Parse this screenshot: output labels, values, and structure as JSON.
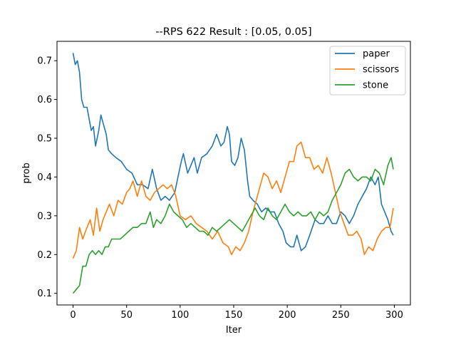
{
  "chart_data": {
    "type": "line",
    "title": "--RPS 622 Result : [0.05, 0.05]",
    "xlabel": "Iter",
    "ylabel": "prob",
    "xlim": [
      -15,
      315
    ],
    "ylim": [
      0.07,
      0.75
    ],
    "xticks": [
      0,
      50,
      100,
      150,
      200,
      250,
      300
    ],
    "yticks": [
      0.1,
      0.2,
      0.3,
      0.4,
      0.5,
      0.6,
      0.7
    ],
    "grid": false,
    "legend_position": "top-right",
    "series": [
      {
        "name": "paper",
        "color": "#1f77b4",
        "points": [
          [
            0,
            0.72
          ],
          [
            2,
            0.69
          ],
          [
            4,
            0.7
          ],
          [
            6,
            0.67
          ],
          [
            8,
            0.6
          ],
          [
            10,
            0.58
          ],
          [
            13,
            0.58
          ],
          [
            15,
            0.55
          ],
          [
            17,
            0.52
          ],
          [
            19,
            0.53
          ],
          [
            21,
            0.48
          ],
          [
            24,
            0.52
          ],
          [
            26,
            0.56
          ],
          [
            28,
            0.54
          ],
          [
            31,
            0.51
          ],
          [
            33,
            0.47
          ],
          [
            36,
            0.46
          ],
          [
            40,
            0.45
          ],
          [
            45,
            0.44
          ],
          [
            50,
            0.42
          ],
          [
            55,
            0.41
          ],
          [
            60,
            0.38
          ],
          [
            65,
            0.38
          ],
          [
            70,
            0.37
          ],
          [
            74,
            0.42
          ],
          [
            78,
            0.37
          ],
          [
            82,
            0.34
          ],
          [
            86,
            0.35
          ],
          [
            90,
            0.34
          ],
          [
            95,
            0.36
          ],
          [
            98,
            0.4
          ],
          [
            101,
            0.44
          ],
          [
            103,
            0.46
          ],
          [
            107,
            0.41
          ],
          [
            110,
            0.43
          ],
          [
            113,
            0.45
          ],
          [
            116,
            0.41
          ],
          [
            120,
            0.45
          ],
          [
            125,
            0.46
          ],
          [
            130,
            0.48
          ],
          [
            134,
            0.51
          ],
          [
            138,
            0.48
          ],
          [
            141,
            0.49
          ],
          [
            144,
            0.53
          ],
          [
            146,
            0.51
          ],
          [
            148,
            0.44
          ],
          [
            151,
            0.43
          ],
          [
            154,
            0.45
          ],
          [
            157,
            0.5
          ],
          [
            160,
            0.47
          ],
          [
            163,
            0.39
          ],
          [
            165,
            0.35
          ],
          [
            168,
            0.34
          ],
          [
            172,
            0.33
          ],
          [
            176,
            0.31
          ],
          [
            180,
            0.32
          ],
          [
            184,
            0.31
          ],
          [
            188,
            0.31
          ],
          [
            192,
            0.28
          ],
          [
            196,
            0.26
          ],
          [
            199,
            0.23
          ],
          [
            203,
            0.22
          ],
          [
            206,
            0.22
          ],
          [
            209,
            0.25
          ],
          [
            213,
            0.21
          ],
          [
            217,
            0.22
          ],
          [
            221,
            0.25
          ],
          [
            226,
            0.29
          ],
          [
            230,
            0.28
          ],
          [
            234,
            0.28
          ],
          [
            238,
            0.3
          ],
          [
            242,
            0.28
          ],
          [
            246,
            0.28
          ],
          [
            250,
            0.31
          ],
          [
            254,
            0.3
          ],
          [
            258,
            0.28
          ],
          [
            262,
            0.3
          ],
          [
            266,
            0.33
          ],
          [
            270,
            0.35
          ],
          [
            274,
            0.37
          ],
          [
            278,
            0.4
          ],
          [
            282,
            0.38
          ],
          [
            285,
            0.4
          ],
          [
            288,
            0.33
          ],
          [
            291,
            0.31
          ],
          [
            294,
            0.29
          ],
          [
            297,
            0.26
          ],
          [
            299,
            0.25
          ]
        ]
      },
      {
        "name": "scissors",
        "color": "#ff7f0e",
        "points": [
          [
            0,
            0.19
          ],
          [
            3,
            0.21
          ],
          [
            6,
            0.27
          ],
          [
            9,
            0.24
          ],
          [
            13,
            0.27
          ],
          [
            16,
            0.29
          ],
          [
            19,
            0.25
          ],
          [
            22,
            0.32
          ],
          [
            25,
            0.26
          ],
          [
            28,
            0.29
          ],
          [
            31,
            0.31
          ],
          [
            34,
            0.33
          ],
          [
            38,
            0.3
          ],
          [
            42,
            0.34
          ],
          [
            46,
            0.33
          ],
          [
            50,
            0.36
          ],
          [
            53,
            0.37
          ],
          [
            56,
            0.39
          ],
          [
            60,
            0.35
          ],
          [
            64,
            0.39
          ],
          [
            68,
            0.35
          ],
          [
            72,
            0.34
          ],
          [
            76,
            0.36
          ],
          [
            80,
            0.37
          ],
          [
            84,
            0.38
          ],
          [
            88,
            0.37
          ],
          [
            92,
            0.38
          ],
          [
            96,
            0.35
          ],
          [
            100,
            0.3
          ],
          [
            105,
            0.29
          ],
          [
            110,
            0.3
          ],
          [
            115,
            0.28
          ],
          [
            120,
            0.27
          ],
          [
            125,
            0.26
          ],
          [
            130,
            0.24
          ],
          [
            135,
            0.26
          ],
          [
            140,
            0.23
          ],
          [
            145,
            0.22
          ],
          [
            148,
            0.2
          ],
          [
            152,
            0.22
          ],
          [
            156,
            0.21
          ],
          [
            160,
            0.23
          ],
          [
            164,
            0.26
          ],
          [
            168,
            0.31
          ],
          [
            172,
            0.35
          ],
          [
            175,
            0.38
          ],
          [
            178,
            0.41
          ],
          [
            182,
            0.4
          ],
          [
            186,
            0.37
          ],
          [
            190,
            0.39
          ],
          [
            194,
            0.36
          ],
          [
            198,
            0.4
          ],
          [
            202,
            0.44
          ],
          [
            206,
            0.44
          ],
          [
            209,
            0.48
          ],
          [
            213,
            0.49
          ],
          [
            217,
            0.45
          ],
          [
            221,
            0.45
          ],
          [
            225,
            0.42
          ],
          [
            229,
            0.43
          ],
          [
            233,
            0.41
          ],
          [
            237,
            0.45
          ],
          [
            241,
            0.41
          ],
          [
            245,
            0.36
          ],
          [
            249,
            0.31
          ],
          [
            253,
            0.28
          ],
          [
            257,
            0.25
          ],
          [
            261,
            0.25
          ],
          [
            265,
            0.26
          ],
          [
            269,
            0.24
          ],
          [
            272,
            0.2
          ],
          [
            276,
            0.22
          ],
          [
            280,
            0.21
          ],
          [
            284,
            0.24
          ],
          [
            288,
            0.26
          ],
          [
            292,
            0.27
          ],
          [
            296,
            0.27
          ],
          [
            299,
            0.32
          ]
        ]
      },
      {
        "name": "stone",
        "color": "#2ca02c",
        "points": [
          [
            0,
            0.1
          ],
          [
            3,
            0.11
          ],
          [
            6,
            0.12
          ],
          [
            9,
            0.17
          ],
          [
            12,
            0.17
          ],
          [
            15,
            0.2
          ],
          [
            18,
            0.21
          ],
          [
            21,
            0.2
          ],
          [
            24,
            0.21
          ],
          [
            27,
            0.2
          ],
          [
            30,
            0.22
          ],
          [
            33,
            0.22
          ],
          [
            36,
            0.24
          ],
          [
            40,
            0.24
          ],
          [
            44,
            0.24
          ],
          [
            48,
            0.25
          ],
          [
            52,
            0.26
          ],
          [
            56,
            0.27
          ],
          [
            60,
            0.27
          ],
          [
            64,
            0.28
          ],
          [
            68,
            0.28
          ],
          [
            72,
            0.31
          ],
          [
            75,
            0.27
          ],
          [
            78,
            0.29
          ],
          [
            82,
            0.28
          ],
          [
            86,
            0.3
          ],
          [
            90,
            0.33
          ],
          [
            94,
            0.31
          ],
          [
            98,
            0.3
          ],
          [
            102,
            0.29
          ],
          [
            106,
            0.27
          ],
          [
            110,
            0.28
          ],
          [
            114,
            0.27
          ],
          [
            118,
            0.26
          ],
          [
            122,
            0.26
          ],
          [
            126,
            0.25
          ],
          [
            130,
            0.27
          ],
          [
            134,
            0.26
          ],
          [
            138,
            0.27
          ],
          [
            142,
            0.28
          ],
          [
            146,
            0.29
          ],
          [
            150,
            0.28
          ],
          [
            154,
            0.27
          ],
          [
            158,
            0.26
          ],
          [
            162,
            0.28
          ],
          [
            166,
            0.3
          ],
          [
            170,
            0.32
          ],
          [
            174,
            0.3
          ],
          [
            178,
            0.29
          ],
          [
            182,
            0.32
          ],
          [
            186,
            0.3
          ],
          [
            190,
            0.29
          ],
          [
            194,
            0.31
          ],
          [
            198,
            0.33
          ],
          [
            202,
            0.31
          ],
          [
            206,
            0.3
          ],
          [
            210,
            0.31
          ],
          [
            214,
            0.3
          ],
          [
            218,
            0.3
          ],
          [
            222,
            0.31
          ],
          [
            226,
            0.29
          ],
          [
            230,
            0.31
          ],
          [
            234,
            0.3
          ],
          [
            238,
            0.31
          ],
          [
            242,
            0.34
          ],
          [
            246,
            0.36
          ],
          [
            250,
            0.38
          ],
          [
            254,
            0.41
          ],
          [
            258,
            0.42
          ],
          [
            262,
            0.4
          ],
          [
            266,
            0.39
          ],
          [
            270,
            0.4
          ],
          [
            274,
            0.4
          ],
          [
            278,
            0.39
          ],
          [
            282,
            0.42
          ],
          [
            286,
            0.41
          ],
          [
            290,
            0.38
          ],
          [
            294,
            0.43
          ],
          [
            297,
            0.45
          ],
          [
            299,
            0.42
          ]
        ]
      }
    ]
  }
}
